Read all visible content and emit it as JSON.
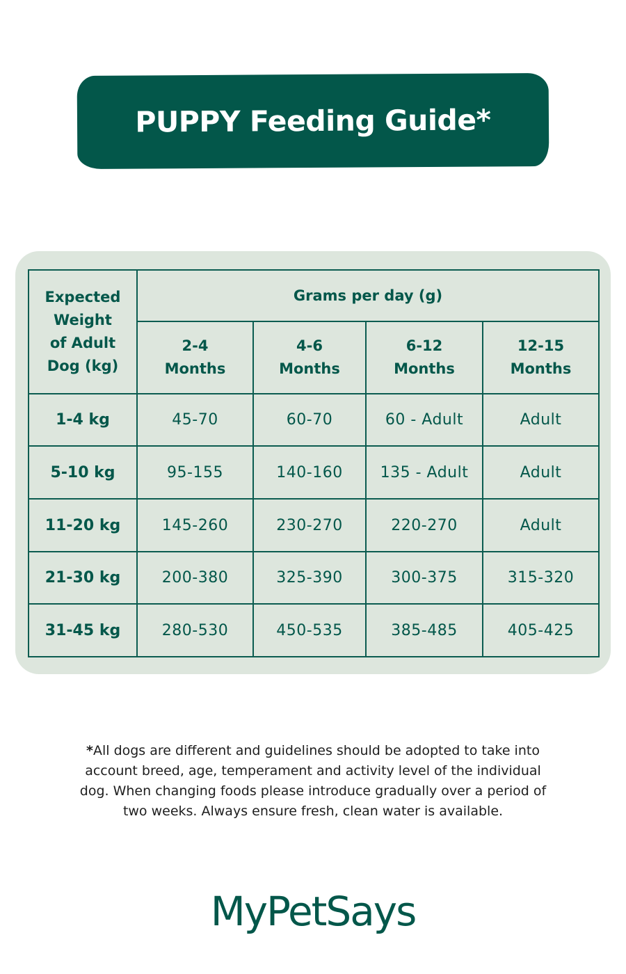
{
  "title": "PUPPY Feeding Guide*",
  "table": {
    "weight_header": [
      "Expected",
      "Weight",
      "of Adult",
      "Dog (kg)"
    ],
    "group_header": "Grams per day (g)",
    "age_columns": [
      {
        "line1": "2-4",
        "line2": "Months"
      },
      {
        "line1": "4-6",
        "line2": "Months"
      },
      {
        "line1": "6-12",
        "line2": "Months"
      },
      {
        "line1": "12-15",
        "line2": "Months"
      }
    ],
    "rows": [
      {
        "weight": "1-4 kg",
        "values": [
          "45-70",
          "60-70",
          "60 - Adult",
          "Adult"
        ]
      },
      {
        "weight": "5-10 kg",
        "values": [
          "95-155",
          "140-160",
          "135 - Adult",
          "Adult"
        ]
      },
      {
        "weight": "11-20 kg",
        "values": [
          "145-260",
          "230-270",
          "220-270",
          "Adult"
        ]
      },
      {
        "weight": "21-30 kg",
        "values": [
          "200-380",
          "325-390",
          "300-375",
          "315-320"
        ]
      },
      {
        "weight": "31-45 kg",
        "values": [
          "280-530",
          "450-535",
          "385-485",
          "405-425"
        ]
      }
    ]
  },
  "footnote": {
    "star": "*",
    "lines": [
      "All dogs are different and guidelines should be adopted to take into",
      "account breed, age, temperament and activity level of the individual",
      "dog. When changing foods please introduce gradually over a period of",
      "two weeks. Always ensure fresh, clean water is available."
    ]
  },
  "brand": "MyPetSays",
  "colors": {
    "primary": "#03574a",
    "table_bg": "#dde6dd",
    "text_dark": "#1e1e1e"
  }
}
